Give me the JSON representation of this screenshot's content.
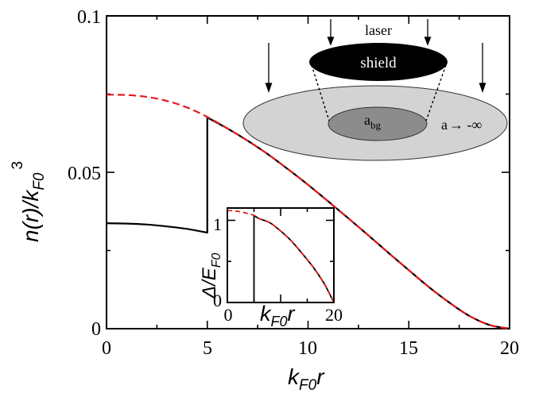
{
  "chart_data": [
    {
      "type": "line",
      "xlabel": "k",
      "xlabel_sub": "F0",
      "xlabel_tail": "r",
      "ylabel": "n(r)/k",
      "ylabel_sub": "F0",
      "ylabel_sup": "3",
      "xlim": [
        0,
        20
      ],
      "ylim": [
        0,
        0.1
      ],
      "xticks": [
        "0",
        "5",
        "10",
        "15",
        "20"
      ],
      "yticks": [
        "0",
        "0.05",
        "0.1"
      ],
      "series": [
        {
          "style": "solid",
          "color": "#000000",
          "x": [
            0,
            1,
            2,
            3,
            4,
            5,
            5,
            6,
            7,
            8,
            9,
            10,
            11,
            12,
            13,
            14,
            15,
            16,
            17,
            18,
            19,
            20
          ],
          "y": [
            0.0337,
            0.0336,
            0.0333,
            0.0327,
            0.0319,
            0.0307,
            0.0675,
            0.064,
            0.0601,
            0.0558,
            0.051,
            0.046,
            0.0407,
            0.0353,
            0.0298,
            0.0242,
            0.0187,
            0.0133,
            0.0084,
            0.0041,
            0.0012,
            0.0
          ]
        },
        {
          "style": "dashed",
          "color": "#e8191c",
          "x": [
            0,
            1,
            2,
            3,
            4,
            5,
            6,
            7,
            8,
            9,
            10,
            11,
            12,
            13,
            14,
            15,
            16,
            17,
            18,
            19,
            20
          ],
          "y": [
            0.0748,
            0.0747,
            0.0741,
            0.0728,
            0.0707,
            0.0677,
            0.064,
            0.0601,
            0.0558,
            0.051,
            0.046,
            0.0407,
            0.0353,
            0.0298,
            0.0242,
            0.0187,
            0.0133,
            0.0084,
            0.0041,
            0.0012,
            0.0
          ]
        }
      ]
    },
    {
      "type": "line",
      "xlabel": "k",
      "xlabel_sub": "F0",
      "xlabel_tail": "r",
      "ylabel": "Δ/E",
      "ylabel_sub": "F0",
      "xlim": [
        0,
        20
      ],
      "ylim": [
        0,
        1.15
      ],
      "xticks": [
        "0",
        "20"
      ],
      "yticks": [
        "0",
        "1"
      ],
      "series": [
        {
          "style": "solid",
          "color": "#000000",
          "x": [
            0,
            5,
            5,
            6,
            8,
            10,
            12,
            14,
            16,
            18,
            19,
            20
          ],
          "y": [
            0,
            0,
            1.06,
            1.02,
            0.97,
            0.87,
            0.75,
            0.6,
            0.44,
            0.25,
            0.13,
            0
          ]
        },
        {
          "style": "dashed",
          "color": "#e8191c",
          "x": [
            0,
            2,
            4,
            5,
            6,
            8,
            10,
            12,
            14,
            16,
            18,
            19,
            20
          ],
          "y": [
            1.12,
            1.11,
            1.08,
            1.06,
            1.02,
            0.97,
            0.87,
            0.75,
            0.6,
            0.44,
            0.25,
            0.13,
            0
          ]
        }
      ]
    }
  ],
  "schematic": {
    "laser_label": "laser",
    "shield_label": "shield",
    "abg_label": "a",
    "abg_sub": "bg",
    "a_label": "a",
    "a_limit": "→ -∞"
  }
}
